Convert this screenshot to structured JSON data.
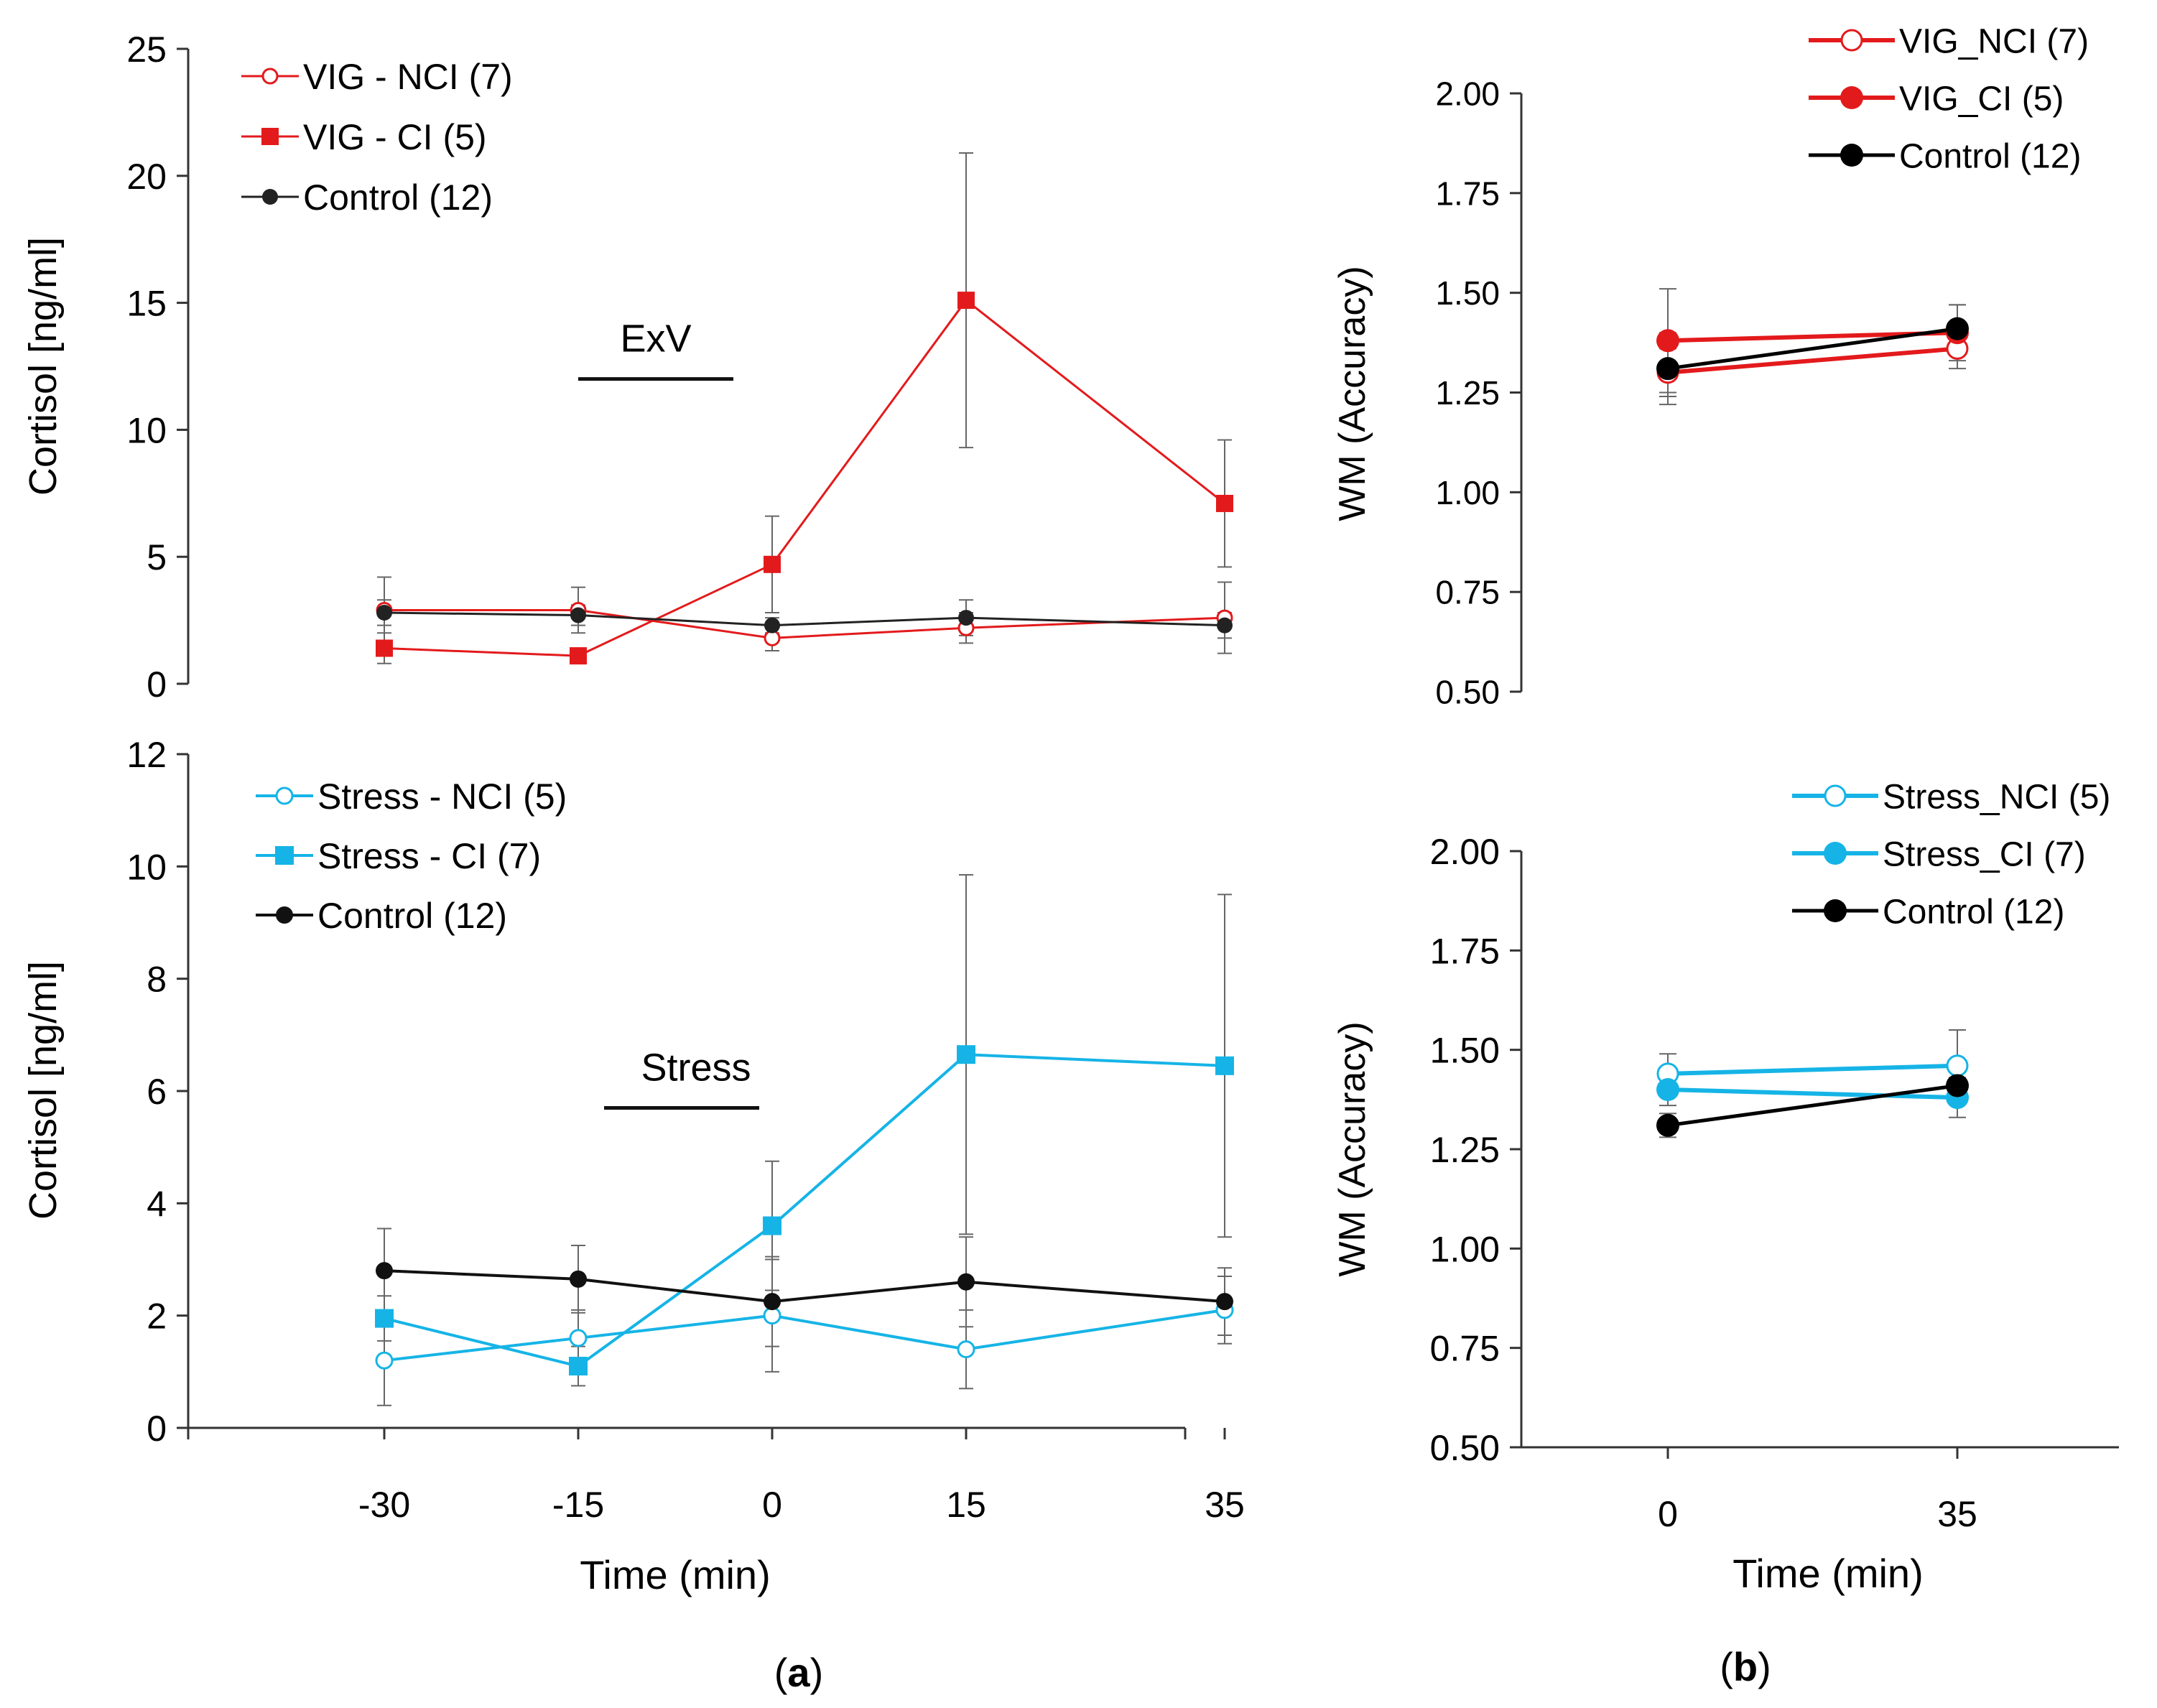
{
  "panel_labels": {
    "a": "a",
    "b": "b"
  },
  "chart_data": [
    {
      "id": "a_top",
      "type": "line",
      "title": "",
      "ylabel": "Cortisol [ng/ml]",
      "xlabel": "",
      "x": [
        -30,
        -15,
        0,
        15,
        35
      ],
      "x_tick_labels": [
        "-30",
        "-15",
        "0",
        "15",
        "35"
      ],
      "ylim": [
        0,
        25
      ],
      "yticks": [
        0,
        5,
        10,
        15,
        20,
        25
      ],
      "ytick_labels": [
        "0",
        "5",
        "10",
        "15",
        "20",
        "25"
      ],
      "legend_position": "top-left",
      "annotation": {
        "text": "ExV",
        "x_from": -15,
        "x_to": -3,
        "y": 12
      },
      "series": [
        {
          "name": "VIG - NCI (7)",
          "color": "#e31a1c",
          "marker": "circle-open",
          "lineWidth": 3,
          "values": [
            2.9,
            2.9,
            1.8,
            2.2,
            2.6
          ],
          "errors": [
            1.3,
            0.9,
            0.5,
            0.6,
            1.4
          ]
        },
        {
          "name": "VIG - CI (5)",
          "color": "#e31a1c",
          "marker": "square",
          "lineWidth": 3,
          "values": [
            1.4,
            1.1,
            4.7,
            15.1,
            7.1
          ],
          "errors": [
            0.6,
            0.3,
            1.9,
            5.8,
            2.5
          ]
        },
        {
          "name": "Control (12)",
          "color": "#222222",
          "marker": "circle",
          "lineWidth": 3,
          "values": [
            2.8,
            2.7,
            2.3,
            2.6,
            2.3
          ],
          "errors": [
            0.5,
            0.4,
            0.3,
            0.7,
            0.5
          ]
        }
      ]
    },
    {
      "id": "a_bottom",
      "type": "line",
      "title": "",
      "ylabel": "Cortisol [ng/ml]",
      "xlabel": "Time (min)",
      "x": [
        -30,
        -15,
        0,
        15,
        35
      ],
      "x_tick_labels": [
        "-30",
        "-15",
        "0",
        "15",
        "35"
      ],
      "ylim": [
        0,
        12
      ],
      "yticks": [
        0,
        2,
        4,
        6,
        8,
        10,
        12
      ],
      "ytick_labels": [
        "0",
        "2",
        "4",
        "6",
        "8",
        "10",
        "12"
      ],
      "legend_position": "top-left",
      "annotation": {
        "text": "Stress",
        "x_from": -13,
        "x_to": -1,
        "y": 5.7
      },
      "series": [
        {
          "name": "Stress - NCI (5)",
          "color": "#16b4e6",
          "marker": "circle-open",
          "lineWidth": 4,
          "values": [
            1.2,
            1.6,
            2.0,
            1.4,
            2.1
          ],
          "errors": [
            0.8,
            0.5,
            1.0,
            0.7,
            0.6
          ]
        },
        {
          "name": "Stress - CI (7)",
          "color": "#16b4e6",
          "marker": "square",
          "lineWidth": 4,
          "values": [
            1.95,
            1.1,
            3.6,
            6.65,
            6.45
          ],
          "errors": [
            0.4,
            0.35,
            1.15,
            3.2,
            3.05
          ]
        },
        {
          "name": "Control (12)",
          "color": "#111111",
          "marker": "circle",
          "lineWidth": 4,
          "values": [
            2.8,
            2.65,
            2.25,
            2.6,
            2.25
          ],
          "errors": [
            0.75,
            0.6,
            0.8,
            0.8,
            0.6
          ]
        }
      ]
    },
    {
      "id": "b_top",
      "type": "line",
      "title": "",
      "ylabel": "WM (Accuracy)",
      "xlabel": "",
      "x": [
        0,
        35
      ],
      "x_tick_labels": [
        "0",
        "35"
      ],
      "ylim": [
        0.5,
        2.0
      ],
      "yticks": [
        0.5,
        0.75,
        1.0,
        1.25,
        1.5,
        1.75,
        2.0
      ],
      "ytick_labels": [
        "0.50",
        "0.75",
        "1.00",
        "1.25",
        "1.50",
        "1.75",
        "2.00"
      ],
      "legend_position": "top-right",
      "series": [
        {
          "name": "VIG_NCI (7)",
          "color": "#e31a1c",
          "marker": "circle-open",
          "lineWidth": 6,
          "values": [
            1.3,
            1.36
          ],
          "errors": [
            0.06,
            0.05
          ]
        },
        {
          "name": "VIG_CI (5)",
          "color": "#e31a1c",
          "marker": "circle",
          "lineWidth": 6,
          "values": [
            1.38,
            1.4
          ],
          "errors": [
            0.13,
            0.07
          ]
        },
        {
          "name": "Control (12)",
          "color": "#000000",
          "marker": "circle",
          "lineWidth": 5,
          "values": [
            1.31,
            1.41
          ],
          "errors": [
            0.09,
            0.06
          ]
        }
      ]
    },
    {
      "id": "b_bottom",
      "type": "line",
      "title": "",
      "ylabel": "WM (Accuracy)",
      "xlabel": "Time (min)",
      "x": [
        0,
        35
      ],
      "x_tick_labels": [
        "0",
        "35"
      ],
      "ylim": [
        0.5,
        2.0
      ],
      "yticks": [
        0.5,
        0.75,
        1.0,
        1.25,
        1.5,
        1.75,
        2.0
      ],
      "ytick_labels": [
        "0.50",
        "0.75",
        "1.00",
        "1.25",
        "1.50",
        "1.75",
        "2.00"
      ],
      "legend_position": "top-right",
      "series": [
        {
          "name": "Stress_NCI (5)",
          "color": "#16b4e6",
          "marker": "circle-open",
          "lineWidth": 6,
          "values": [
            1.44,
            1.46
          ],
          "errors": [
            0.05,
            0.09
          ]
        },
        {
          "name": "Stress_CI (7)",
          "color": "#16b4e6",
          "marker": "circle",
          "lineWidth": 6,
          "values": [
            1.4,
            1.38
          ],
          "errors": [
            0.04,
            0.05
          ]
        },
        {
          "name": "Control (12)",
          "color": "#000000",
          "marker": "circle",
          "lineWidth": 5,
          "values": [
            1.31,
            1.41
          ],
          "errors": [
            0.03,
            0.04
          ]
        }
      ]
    }
  ]
}
